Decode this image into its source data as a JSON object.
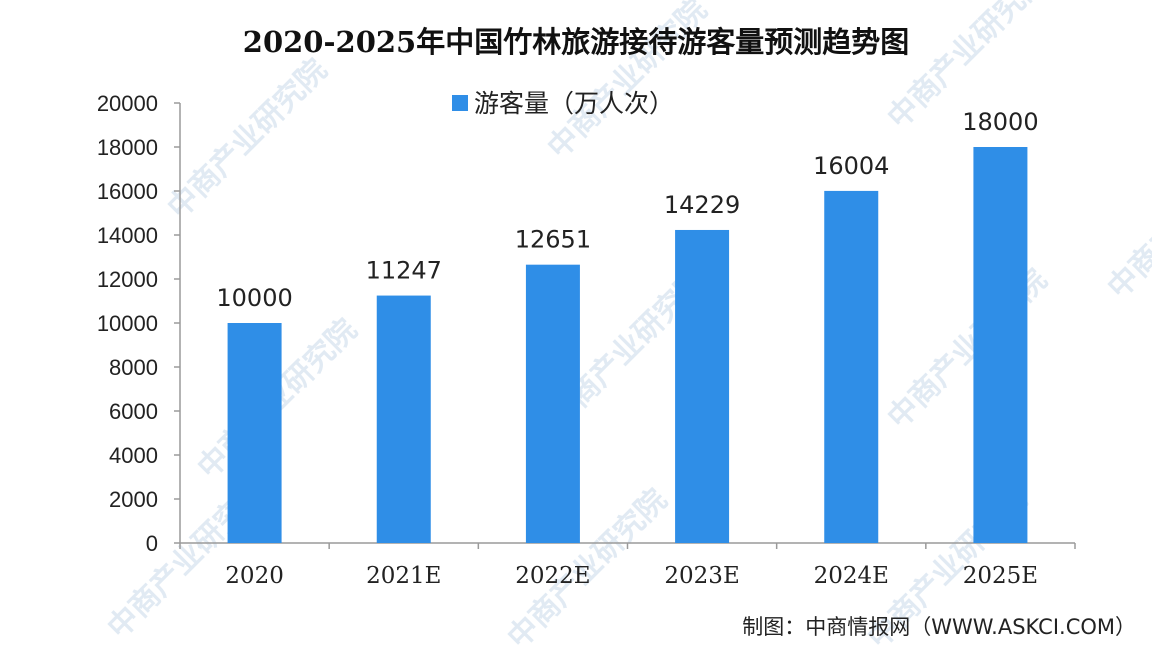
{
  "colors": {
    "bar": "#2f8ee7",
    "axis": "#9a9a9a",
    "text": "#222222",
    "watermark": "#c9d9ea"
  },
  "watermark": "中商产业研究院",
  "source": "制图：中商情报网（WWW.ASKCI.COM）",
  "chart_data": {
    "type": "bar",
    "title": "2020-2025年中国竹林旅游接待游客量预测趋势图",
    "categories": [
      "2020",
      "2021E",
      "2022E",
      "2023E",
      "2024E",
      "2025E"
    ],
    "series": [
      {
        "name": "游客量（万人次）",
        "values": [
          10000,
          11247,
          12651,
          14229,
          16004,
          18000
        ]
      }
    ],
    "data_labels": [
      "10000",
      "11247",
      "12651",
      "14229",
      "16004",
      "18000"
    ],
    "ylim": [
      0,
      20000
    ],
    "yticks": [
      0,
      2000,
      4000,
      6000,
      8000,
      10000,
      12000,
      14000,
      16000,
      18000,
      20000
    ],
    "grid": false,
    "legend_position": "top-center",
    "xlabel": "",
    "ylabel": ""
  }
}
